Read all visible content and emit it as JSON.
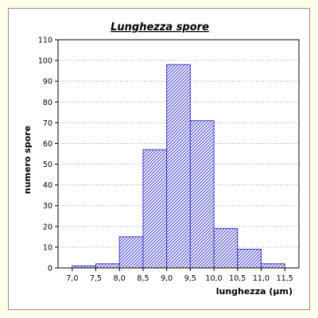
{
  "chart_data": {
    "type": "bar",
    "title": "Lunghezza spore",
    "xlabel": "lunghezza (µm)",
    "ylabel": "numero spore",
    "bin_edges": [
      7.0,
      7.5,
      8.0,
      8.5,
      9.0,
      9.5,
      10.0,
      10.5,
      11.0,
      11.5
    ],
    "x_tick_labels": [
      "7,0",
      "7,5",
      "8,0",
      "8,5",
      "9,0",
      "9,5",
      "10,0",
      "10,5",
      "11,0",
      "11,5"
    ],
    "values": [
      1,
      2,
      15,
      57,
      98,
      71,
      19,
      9,
      2
    ],
    "xlim": [
      6.7,
      11.8
    ],
    "ylim": [
      0,
      110
    ],
    "y_ticks": [
      0,
      10,
      20,
      30,
      40,
      50,
      60,
      70,
      80,
      90,
      100,
      110
    ],
    "grid": "horizontal dotted",
    "bar_color": "#3a3acc",
    "bar_fill": "diagonal hatch"
  }
}
